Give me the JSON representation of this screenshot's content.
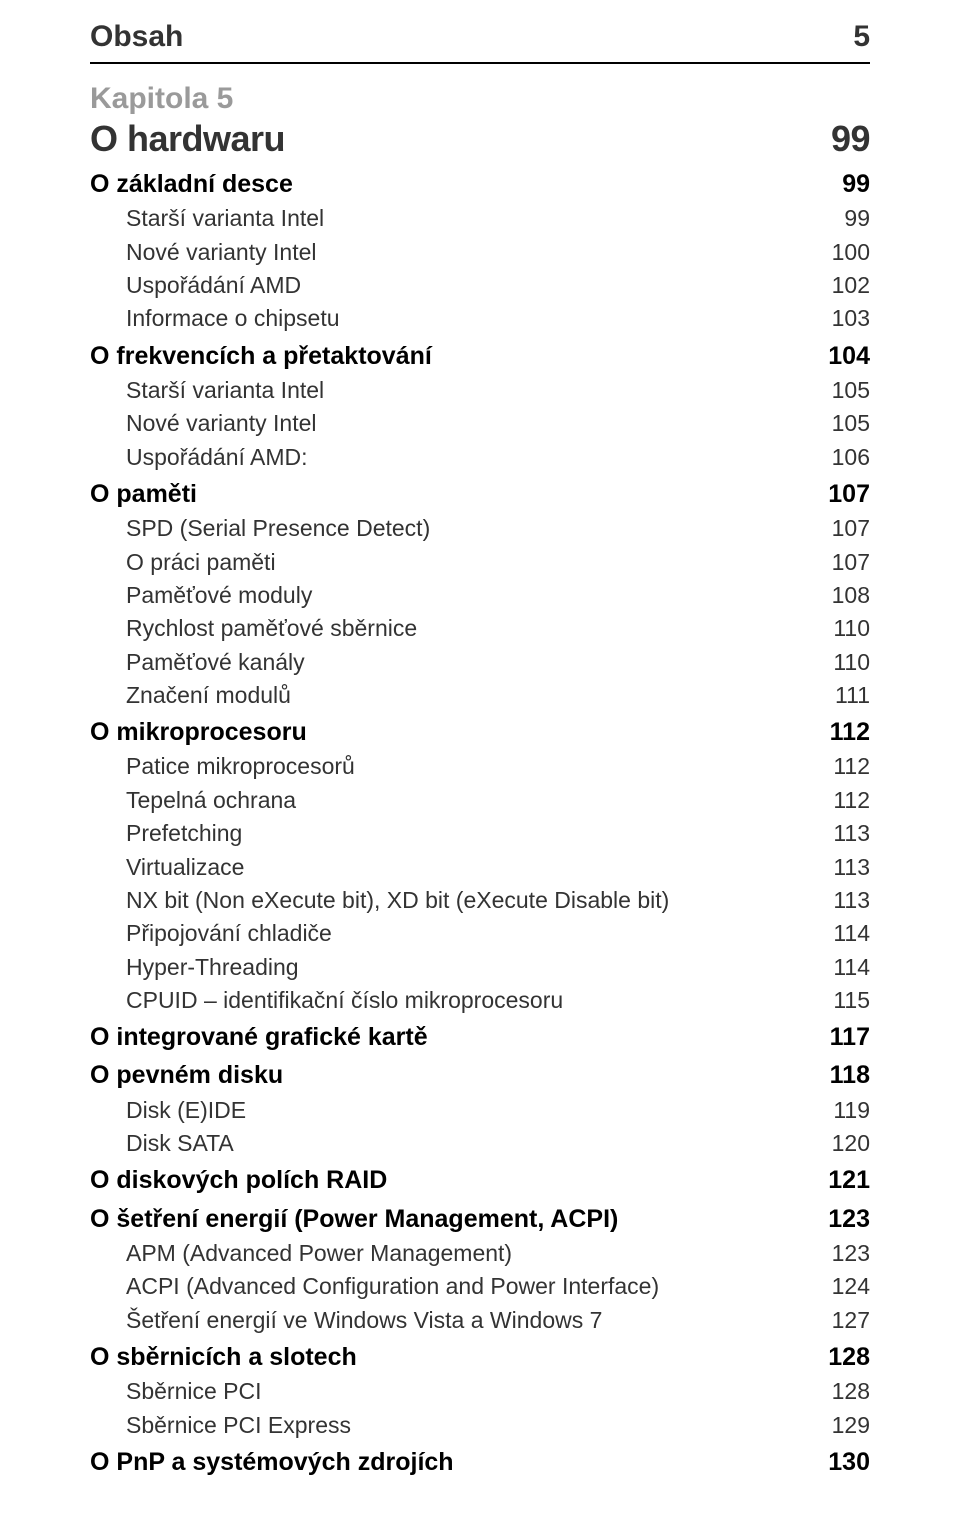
{
  "colors": {
    "text": "#333333",
    "muted": "#9a9a9a",
    "rule": "#000000",
    "background": "#ffffff"
  },
  "header": {
    "title": "Obsah",
    "page": "5"
  },
  "chapter": {
    "label": "Kapitola 5",
    "title": "O hardwaru",
    "page": "99"
  },
  "toc": [
    {
      "level": 1,
      "label": "O základní desce",
      "page": "99"
    },
    {
      "level": 2,
      "label": "Starší varianta Intel",
      "page": "99"
    },
    {
      "level": 2,
      "label": "Nové varianty Intel",
      "page": "100"
    },
    {
      "level": 2,
      "label": "Uspořádání AMD",
      "page": "102"
    },
    {
      "level": 2,
      "label": "Informace o chipsetu",
      "page": "103"
    },
    {
      "level": 1,
      "label": "O frekvencích a přetaktování",
      "page": "104"
    },
    {
      "level": 2,
      "label": "Starší varianta Intel",
      "page": "105"
    },
    {
      "level": 2,
      "label": "Nové varianty Intel",
      "page": "105"
    },
    {
      "level": 2,
      "label": "Uspořádání AMD:",
      "page": "106"
    },
    {
      "level": 1,
      "label": "O paměti",
      "page": "107"
    },
    {
      "level": 2,
      "label": "SPD (Serial Presence Detect)",
      "page": "107"
    },
    {
      "level": 2,
      "label": "O práci paměti",
      "page": "107"
    },
    {
      "level": 2,
      "label": "Paměťové moduly",
      "page": "108"
    },
    {
      "level": 2,
      "label": "Rychlost paměťové sběrnice",
      "page": "110"
    },
    {
      "level": 2,
      "label": "Paměťové kanály",
      "page": "110"
    },
    {
      "level": 2,
      "label": "Značení modulů",
      "page": "111"
    },
    {
      "level": 1,
      "label": "O mikroprocesoru",
      "page": "112"
    },
    {
      "level": 2,
      "label": "Patice mikroprocesorů",
      "page": "112"
    },
    {
      "level": 2,
      "label": "Tepelná ochrana",
      "page": "112"
    },
    {
      "level": 2,
      "label": "Prefetching",
      "page": "113"
    },
    {
      "level": 2,
      "label": "Virtualizace",
      "page": "113"
    },
    {
      "level": 2,
      "label": "NX bit (Non eXecute bit), XD bit (eXecute Disable bit)",
      "page": "113"
    },
    {
      "level": 2,
      "label": "Připojování chladiče",
      "page": "114"
    },
    {
      "level": 2,
      "label": "Hyper-Threading",
      "page": "114"
    },
    {
      "level": 2,
      "label": "CPUID – identifikační číslo mikroprocesoru",
      "page": "115"
    },
    {
      "level": 1,
      "label": "O integrované grafické kartě",
      "page": "117"
    },
    {
      "level": 1,
      "label": "O pevném disku",
      "page": "118"
    },
    {
      "level": 2,
      "label": "Disk (E)IDE",
      "page": "119"
    },
    {
      "level": 2,
      "label": "Disk SATA",
      "page": "120"
    },
    {
      "level": 1,
      "label": "O diskových polích RAID",
      "page": "121"
    },
    {
      "level": 1,
      "label": "O šetření energií (Power Management, ACPI)",
      "page": "123"
    },
    {
      "level": 2,
      "label": "APM (Advanced Power Management)",
      "page": "123"
    },
    {
      "level": 2,
      "label": "ACPI (Advanced Configuration and Power Interface)",
      "page": "124"
    },
    {
      "level": 2,
      "label": "Šetření energií ve Windows Vista a Windows 7",
      "page": "127"
    },
    {
      "level": 1,
      "label": "O sběrnicích a slotech",
      "page": "128"
    },
    {
      "level": 2,
      "label": "Sběrnice PCI",
      "page": "128"
    },
    {
      "level": 2,
      "label": "Sběrnice PCI Express",
      "page": "129"
    },
    {
      "level": 1,
      "label": "O PnP a systémových zdrojích",
      "page": "130"
    }
  ]
}
